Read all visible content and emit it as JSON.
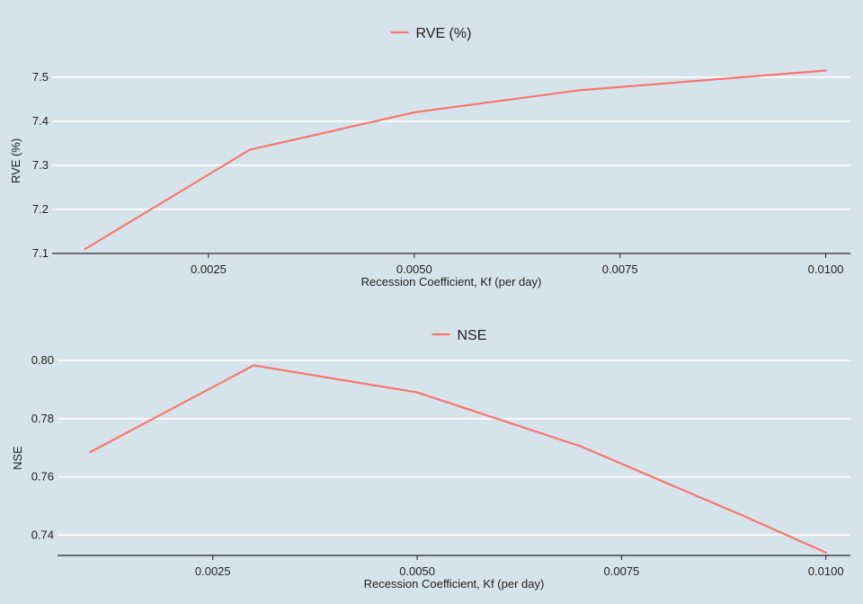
{
  "chart_data": [
    {
      "type": "line",
      "title": "",
      "xlabel": "Recession Coefficient, Kf (per day)",
      "ylabel": "RVE (%)",
      "legend": {
        "position": "top",
        "entries": [
          "RVE (%)"
        ]
      },
      "grid": "horizontal",
      "xlim": [
        0.0006,
        0.0103
      ],
      "ylim": [
        7.1,
        7.52
      ],
      "x_ticks": [
        0.0025,
        0.005,
        0.0075,
        0.01
      ],
      "x_tick_labels": [
        "0.0025",
        "0.0050",
        "0.0075",
        "0.0100"
      ],
      "y_ticks": [
        7.1,
        7.2,
        7.3,
        7.4,
        7.5
      ],
      "y_tick_labels": [
        "7.1",
        "7.2",
        "7.3",
        "7.4",
        "7.5"
      ],
      "series": [
        {
          "name": "RVE (%)",
          "color": "#f8766d",
          "x": [
            0.001,
            0.003,
            0.005,
            0.007,
            0.01
          ],
          "y": [
            7.11,
            7.335,
            7.42,
            7.47,
            7.515
          ]
        }
      ]
    },
    {
      "type": "line",
      "title": "",
      "xlabel": "Recession Coefficient, Kf (per day)",
      "ylabel": "NSE",
      "legend": {
        "position": "top",
        "entries": [
          "NSE"
        ]
      },
      "grid": "horizontal",
      "xlim": [
        0.0006,
        0.0103
      ],
      "ylim": [
        0.733,
        0.8
      ],
      "x_ticks": [
        0.0025,
        0.005,
        0.0075,
        0.01
      ],
      "x_tick_labels": [
        "0.0025",
        "0.0050",
        "0.0075",
        "0.0100"
      ],
      "y_ticks": [
        0.74,
        0.76,
        0.78,
        0.8
      ],
      "y_tick_labels": [
        "0.74",
        "0.76",
        "0.78",
        "0.80"
      ],
      "series": [
        {
          "name": "NSE",
          "color": "#f8766d",
          "x": [
            0.001,
            0.003,
            0.005,
            0.007,
            0.009,
            0.01
          ],
          "y": [
            0.7685,
            0.7983,
            0.789,
            0.7705,
            0.7465,
            0.734
          ]
        }
      ]
    }
  ]
}
